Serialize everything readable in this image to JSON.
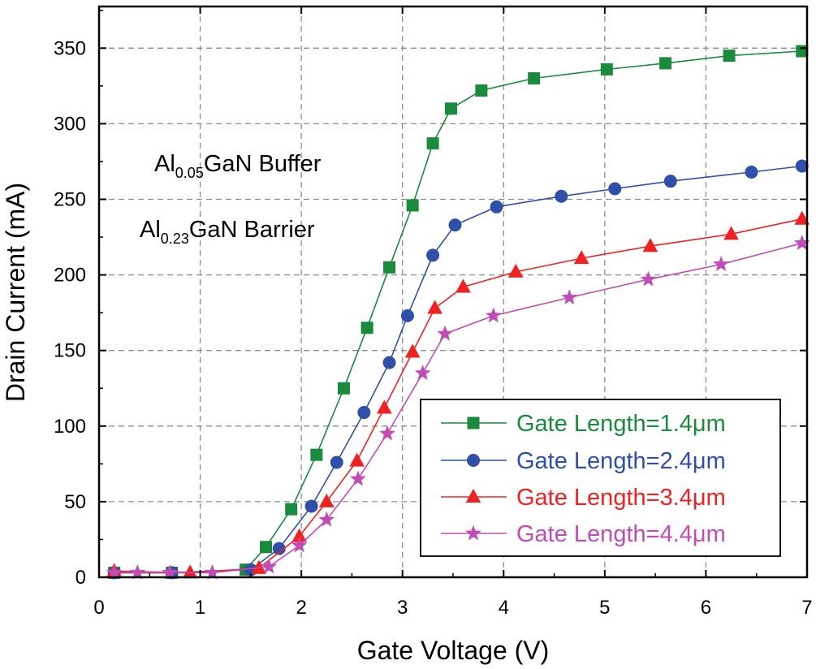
{
  "chart_data": {
    "type": "line",
    "xlabel": "Gate Voltage (V)",
    "ylabel": "Drain Current (mA)",
    "xlim": [
      0,
      7
    ],
    "ylim": [
      0,
      380
    ],
    "xticks": [
      0,
      1,
      2,
      3,
      4,
      5,
      6,
      7
    ],
    "yticks": [
      0,
      50,
      100,
      150,
      200,
      250,
      300,
      350
    ],
    "grid": true,
    "legend_position": "bottom-right",
    "annotations": [
      {
        "pre": "Al",
        "sub": "0.05",
        "post": "GaN Buffer"
      },
      {
        "pre": "Al",
        "sub": "0.23",
        "post": "GaN Barrier"
      }
    ],
    "series": [
      {
        "name": "Gate Length=1.4μm",
        "color": "#1a8a3c",
        "marker": "square",
        "x": [
          0.15,
          0.72,
          1.45,
          1.65,
          1.9,
          2.15,
          2.42,
          2.65,
          2.87,
          3.1,
          3.3,
          3.48,
          3.78,
          4.3,
          5.02,
          5.6,
          6.23,
          6.95
        ],
        "y": [
          3,
          3,
          5,
          20,
          45,
          81,
          125,
          165,
          205,
          246,
          287,
          310,
          322,
          330,
          336,
          340,
          345,
          348
        ]
      },
      {
        "name": "Gate Length=2.4μm",
        "color": "#2f4fa8",
        "marker": "circle",
        "x": [
          0.15,
          0.72,
          1.5,
          1.78,
          2.1,
          2.35,
          2.62,
          2.87,
          3.05,
          3.3,
          3.52,
          3.93,
          4.57,
          5.1,
          5.65,
          6.45,
          6.95
        ],
        "y": [
          3,
          3,
          5,
          19,
          47,
          76,
          109,
          142,
          173,
          213,
          233,
          245,
          252,
          257,
          262,
          268,
          272
        ]
      },
      {
        "name": "Gate Length=3.4μm",
        "color": "#ee2222",
        "marker": "triangle",
        "x": [
          0.15,
          0.9,
          1.58,
          1.98,
          2.25,
          2.55,
          2.82,
          3.1,
          3.32,
          3.6,
          4.12,
          4.77,
          5.45,
          6.25,
          6.95
        ],
        "y": [
          4,
          3,
          6,
          27,
          50,
          77,
          112,
          149,
          178,
          192,
          202,
          211,
          219,
          227,
          237
        ]
      },
      {
        "name": "Gate Length=4.4μm",
        "color": "#c04cb6",
        "marker": "star",
        "x": [
          0.15,
          0.38,
          0.7,
          1.12,
          1.68,
          1.98,
          2.25,
          2.56,
          2.85,
          3.2,
          3.42,
          3.9,
          4.65,
          5.43,
          6.15,
          6.95
        ],
        "y": [
          3,
          3,
          3,
          3,
          7,
          21,
          38,
          65,
          95,
          135,
          161,
          173,
          185,
          197,
          207,
          221
        ]
      }
    ]
  }
}
